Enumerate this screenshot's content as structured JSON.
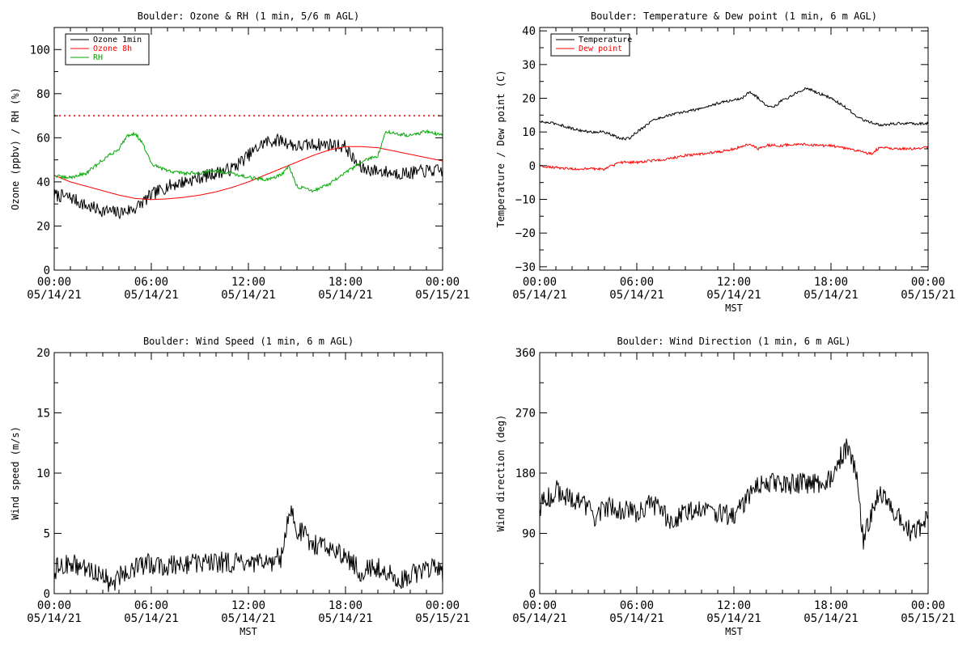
{
  "chart_data": [
    {
      "id": "ozone",
      "type": "line",
      "title": "Boulder: Ozone & RH (1 min, 5/6 m AGL)",
      "ylabel": "Ozone (ppbv) / RH (%)",
      "xlabel": "",
      "ylim": [
        0,
        110
      ],
      "yticks": [
        0,
        20,
        40,
        60,
        80,
        100
      ],
      "ytick_labels": [
        "0",
        "20",
        "40",
        "60",
        "80",
        "100"
      ],
      "xticks_hours": [
        0,
        6,
        12,
        18,
        24
      ],
      "xtick_labels": [
        [
          "00:00",
          "05/14/21"
        ],
        [
          "06:00",
          "05/14/21"
        ],
        [
          "12:00",
          "05/14/21"
        ],
        [
          "18:00",
          "05/14/21"
        ],
        [
          "00:00",
          "05/15/21"
        ]
      ],
      "grid": false,
      "legend_position": "top-left",
      "reference_line": {
        "y": 70,
        "color": "#ff0000",
        "style": "dotted"
      },
      "series": [
        {
          "name": "Ozone 1min",
          "color": "#000000",
          "noise": 3,
          "x": [
            0,
            1,
            2,
            3,
            4,
            5,
            5.5,
            6,
            7,
            8,
            9,
            10,
            11,
            12,
            13,
            14,
            15,
            16,
            17,
            18,
            18.5,
            19,
            20,
            21,
            22,
            23,
            24
          ],
          "y": [
            34,
            33,
            29,
            27,
            26,
            28,
            31,
            34,
            38,
            40,
            42,
            44,
            46,
            52,
            58,
            59,
            56,
            57,
            57,
            56,
            50,
            46,
            45,
            44,
            44,
            45,
            45
          ]
        },
        {
          "name": "Ozone 8h",
          "color": "#ff0000",
          "noise": 0,
          "x": [
            0,
            1,
            2,
            3,
            4,
            5,
            6,
            7,
            8,
            9,
            10,
            11,
            12,
            13,
            14,
            15,
            16,
            17,
            18,
            19,
            20,
            21,
            22,
            23,
            24
          ],
          "y": [
            43,
            40,
            38,
            36,
            34,
            32.5,
            32,
            32.3,
            33,
            34,
            35.5,
            37.5,
            40,
            43,
            46,
            49,
            52,
            54.5,
            56,
            56,
            55.5,
            54,
            52.5,
            51,
            49.5
          ]
        },
        {
          "name": "RH",
          "color": "#00aa00",
          "noise": 0.8,
          "x": [
            0,
            0.5,
            1,
            2,
            3,
            4,
            4.5,
            5,
            5.5,
            6,
            7,
            8,
            9,
            10,
            11,
            12,
            13,
            14,
            14.5,
            15,
            16,
            17,
            18,
            19,
            20,
            20.5,
            21,
            22,
            23,
            24
          ],
          "y": [
            43,
            42,
            42,
            44,
            50,
            55,
            61,
            62,
            57,
            48,
            45,
            44,
            44,
            45,
            44,
            42,
            41,
            43,
            47,
            38,
            36,
            39,
            44,
            49,
            52,
            63,
            62,
            61,
            63,
            61
          ]
        }
      ]
    },
    {
      "id": "temp",
      "type": "line",
      "title": "Boulder: Temperature & Dew point (1 min, 6 m AGL)",
      "ylabel": "Temperature / Dew point (C)",
      "xlabel": "MST",
      "ylim": [
        -31,
        41
      ],
      "yticks": [
        -30,
        -20,
        -10,
        0,
        10,
        20,
        30,
        40
      ],
      "ytick_labels": [
        "−30",
        "−20",
        "−10",
        "0",
        "10",
        "20",
        "30",
        "40"
      ],
      "xticks_hours": [
        0,
        6,
        12,
        18,
        24
      ],
      "xtick_labels": [
        [
          "00:00",
          "05/14/21"
        ],
        [
          "06:00",
          "05/14/21"
        ],
        [
          "12:00",
          "05/14/21"
        ],
        [
          "18:00",
          "05/14/21"
        ],
        [
          "00:00",
          "05/15/21"
        ]
      ],
      "grid": false,
      "legend_position": "top-left",
      "series": [
        {
          "name": "Temperature",
          "color": "#000000",
          "noise": 0.4,
          "x": [
            0,
            1,
            2,
            3,
            4,
            4.5,
            5,
            5.5,
            6,
            7,
            8,
            9,
            10,
            11,
            12,
            12.5,
            13,
            13.5,
            14,
            14.5,
            15,
            15.5,
            16,
            16.5,
            17,
            18,
            19,
            19.5,
            20,
            21,
            22,
            23,
            24
          ],
          "y": [
            13,
            12.5,
            11,
            10,
            10,
            9,
            8,
            8,
            10,
            13.5,
            15,
            16,
            17,
            18.5,
            19.5,
            20,
            22,
            20,
            18,
            17.5,
            19.5,
            20.5,
            22,
            23,
            22,
            20,
            17,
            15,
            13.5,
            12,
            12.5,
            12.5,
            12.5
          ]
        },
        {
          "name": "Dew point",
          "color": "#ff0000",
          "noise": 0.4,
          "x": [
            0,
            1,
            2,
            3,
            4,
            5,
            6,
            7,
            8,
            9,
            10,
            11,
            12,
            13,
            13.5,
            14,
            15,
            16,
            17,
            18,
            19,
            20,
            20.5,
            21,
            22,
            23,
            24
          ],
          "y": [
            0,
            -0.5,
            -1,
            -1,
            -1,
            1,
            1,
            1.5,
            2,
            3,
            3.5,
            4,
            5,
            6.5,
            5,
            6,
            6,
            6.5,
            6,
            6,
            5,
            4,
            3.5,
            5.5,
            5,
            5,
            5.5
          ]
        }
      ]
    },
    {
      "id": "wspd",
      "type": "line",
      "title": "Boulder: Wind Speed (1 min, 6 m AGL)",
      "ylabel": "Wind speed (m/s)",
      "xlabel": "MST",
      "ylim": [
        0,
        20
      ],
      "yticks": [
        0,
        5,
        10,
        15,
        20
      ],
      "ytick_labels": [
        "0",
        "5",
        "10",
        "15",
        "20"
      ],
      "xticks_hours": [
        0,
        6,
        12,
        18,
        24
      ],
      "xtick_labels": [
        [
          "00:00",
          "05/14/21"
        ],
        [
          "06:00",
          "05/14/21"
        ],
        [
          "12:00",
          "05/14/21"
        ],
        [
          "18:00",
          "05/14/21"
        ],
        [
          "00:00",
          "05/15/21"
        ]
      ],
      "grid": false,
      "series": [
        {
          "name": "",
          "color": "#000000",
          "noise": 0.9,
          "x": [
            0,
            1,
            2,
            3,
            3.5,
            4,
            5,
            6,
            7,
            8,
            9,
            10,
            11,
            12,
            13,
            14,
            14.5,
            15,
            16,
            17,
            18,
            19,
            20,
            20.5,
            21,
            22,
            23,
            24
          ],
          "y": [
            2,
            2.5,
            2,
            1.7,
            0.6,
            1.5,
            2.2,
            2.5,
            2.3,
            2.5,
            2.5,
            2.6,
            2.6,
            2.3,
            2.5,
            3,
            7,
            5.5,
            4,
            4,
            3,
            1.8,
            2.2,
            2,
            1,
            1.5,
            2.2,
            1.8
          ]
        }
      ]
    },
    {
      "id": "wdir",
      "type": "line",
      "title": "Boulder: Wind Direction (1 min, 6 m AGL)",
      "ylabel": "Wind direction (deg)",
      "xlabel": "MST",
      "ylim": [
        0,
        360
      ],
      "yticks": [
        0,
        90,
        180,
        270,
        360
      ],
      "ytick_labels": [
        "0",
        "90",
        "180",
        "270",
        "360"
      ],
      "xticks_hours": [
        0,
        6,
        12,
        18,
        24
      ],
      "xtick_labels": [
        [
          "00:00",
          "05/14/21"
        ],
        [
          "06:00",
          "05/14/21"
        ],
        [
          "12:00",
          "05/14/21"
        ],
        [
          "18:00",
          "05/14/21"
        ],
        [
          "00:00",
          "05/15/21"
        ]
      ],
      "grid": false,
      "series": [
        {
          "name": "",
          "color": "#000000",
          "noise": 16,
          "x": [
            0,
            1,
            2,
            3,
            3.5,
            4,
            5,
            6,
            7,
            8,
            9,
            10,
            11,
            12,
            13,
            14,
            15,
            16,
            17,
            18,
            18.5,
            19,
            19.5,
            20,
            20.5,
            21,
            21.5,
            22,
            23,
            24
          ],
          "y": [
            130,
            155,
            140,
            130,
            110,
            130,
            125,
            120,
            135,
            110,
            120,
            130,
            120,
            115,
            150,
            170,
            160,
            165,
            165,
            170,
            200,
            220,
            190,
            80,
            120,
            150,
            140,
            120,
            90,
            110
          ]
        }
      ]
    }
  ]
}
